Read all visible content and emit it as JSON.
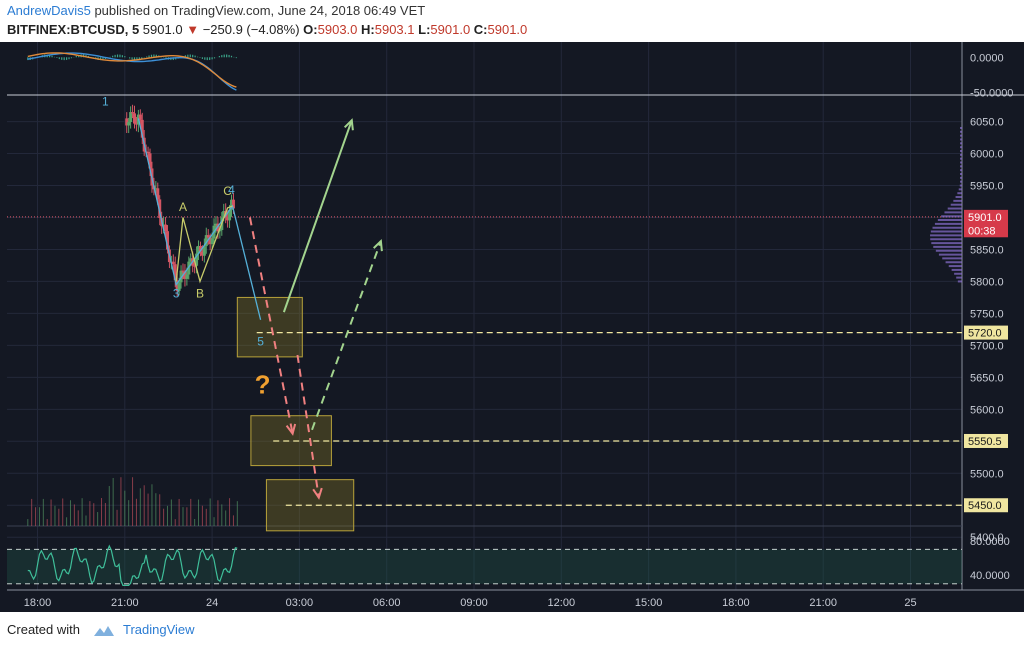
{
  "header": {
    "author": "AndrewDavis5",
    "published": "published on TradingView.com, June 24, 2018 06:49 VET",
    "symbol": "BITFINEX:BTCUSD, 5",
    "last": "5901.0",
    "change": "−250.9 (−4.08%)",
    "o_label": "O:",
    "o_value": "5903.0",
    "h_label": "H:",
    "h_value": "5903.1",
    "l_label": "L:",
    "l_value": "5901.0",
    "c_label": "C:",
    "c_value": "5901.0"
  },
  "footer": {
    "created_with": "Created with",
    "brand": "TradingView"
  },
  "colors": {
    "background": "#141823",
    "grid": "#23283a",
    "up": "#5aa46a",
    "down": "#d45563",
    "wave_blue": "#55b0d8",
    "wave_yellow": "#c8cc6a",
    "arrow_green": "#a3d48e",
    "arrow_red": "#f08080",
    "zone_fill": "#8a7a24",
    "question": "#f0a030",
    "price_line": "#e05a6a"
  },
  "chart_data": {
    "type": "candlestick",
    "symbol": "BITFINEX:BTCUSD",
    "interval": "5",
    "x_ticks": [
      "18:00",
      "21:00",
      "24",
      "03:00",
      "06:00",
      "09:00",
      "12:00",
      "15:00",
      "18:00",
      "21:00",
      "25"
    ],
    "y_ticks": [
      "6050.0",
      "6000.0",
      "5950.0",
      "5900.0",
      "5850.0",
      "5800.0",
      "5750.0",
      "5700.0",
      "5650.0",
      "5600.0",
      "5550.0",
      "5500.0",
      "5450.0",
      "5400.0"
    ],
    "y_range": [
      5380,
      6090
    ],
    "price_labels": [
      {
        "label": "5901.0",
        "value": 5901.0,
        "style": "current"
      },
      {
        "label": "00:38",
        "value": 5880.0,
        "style": "timer"
      },
      {
        "label": "5720.0",
        "value": 5720.0,
        "style": "level"
      },
      {
        "label": "5550.5",
        "value": 5550.5,
        "style": "level"
      },
      {
        "label": "5450.0",
        "value": 5450.0,
        "style": "level"
      }
    ],
    "wave_labels": [
      {
        "label": "1",
        "x": 7.0,
        "y": 6075,
        "color": "blue"
      },
      {
        "label": "3",
        "x": 14.3,
        "y": 5775,
        "color": "blue"
      },
      {
        "label": "A",
        "x": 15.0,
        "y": 5910,
        "color": "yellow"
      },
      {
        "label": "B",
        "x": 16.75,
        "y": 5775,
        "color": "yellow"
      },
      {
        "label": "C",
        "x": 19.6,
        "y": 5935,
        "color": "yellow"
      },
      {
        "label": "4",
        "x": 20.0,
        "y": 5937,
        "color": "blue"
      },
      {
        "label": "5",
        "x": 23.0,
        "y": 5700,
        "color": "blue"
      }
    ],
    "wave_path_blue": [
      [
        10.4,
        6055
      ],
      [
        14.3,
        5795
      ],
      [
        20.1,
        5918
      ],
      [
        23.0,
        5740
      ]
    ],
    "wave_path_yellow": [
      [
        14.3,
        5800
      ],
      [
        15.0,
        5900
      ],
      [
        16.75,
        5800
      ],
      [
        19.6,
        5915
      ],
      [
        20.1,
        5918
      ]
    ],
    "annotation_question": "?",
    "zones": [
      {
        "x0": 20.6,
        "x1": 27.3,
        "y0": 5682,
        "y1": 5775
      },
      {
        "x0": 22.0,
        "x1": 30.3,
        "y0": 5512,
        "y1": 5590
      },
      {
        "x0": 23.6,
        "x1": 32.6,
        "y0": 5410,
        "y1": 5490
      }
    ],
    "level_lines": [
      {
        "value": 5720.0,
        "x0": 22.6
      },
      {
        "value": 5550.5,
        "x0": 24.3
      },
      {
        "value": 5450.0,
        "x0": 25.6
      }
    ],
    "arrows": [
      {
        "from": [
          25.4,
          5752
        ],
        "to": [
          32.4,
          6052
        ],
        "style": "solid",
        "color": "green"
      },
      {
        "from": [
          28.3,
          5568
        ],
        "to": [
          35.4,
          5863
        ],
        "style": "dashed",
        "color": "green"
      },
      {
        "from": [
          21.9,
          5900
        ],
        "to": [
          26.3,
          5562
        ],
        "style": "dashed",
        "color": "red"
      },
      {
        "from": [
          26.8,
          5685
        ],
        "to": [
          29.0,
          5462
        ],
        "style": "dashed",
        "color": "red"
      }
    ],
    "oscillator_top": {
      "y_ticks": [
        "0.0000",
        "-50.0000"
      ],
      "y_range": [
        -52,
        16
      ]
    },
    "oscillator_bottom": {
      "y_ticks": [
        "80.0000",
        "40.0000"
      ],
      "y_range": [
        25,
        95
      ],
      "bands": [
        70,
        30
      ]
    }
  }
}
